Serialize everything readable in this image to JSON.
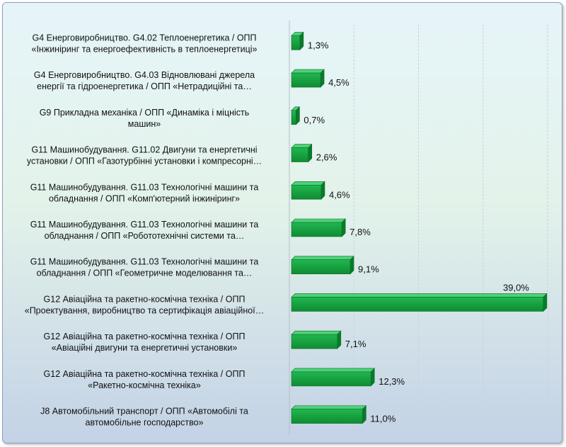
{
  "chart_data": {
    "type": "bar",
    "orientation": "horizontal",
    "grid": true,
    "series_color": "#12a03c",
    "xlim": [
      0,
      40
    ],
    "categories": [
      [
        "G4 Енерговиробництво. G4.02 Теплоенергетика / ОПП",
        "«Інжиніринг та енергоефективність в теплоенергетиці»"
      ],
      [
        "G4 Енерговиробництво.  G4.03 Відновлювані джерела",
        "енергії та гідроенергетика / ОПП «Нетрадиційні та…"
      ],
      [
        "G9 Прикладна механіка / ОПП «Динаміка і міцність",
        "машин»"
      ],
      [
        "G11 Машинобудування. G11.02 Двигуни та енергетичні",
        "установки / ОПП «Газотурбінні установки і компресорні…"
      ],
      [
        "G11 Машинобудування. G11.03 Технологічні машини та",
        "обладнання / ОПП «Комп'ютерний інжиніринг»"
      ],
      [
        "G11 Машинобудування. G11.03 Технологічні машини та",
        "обладнання / ОПП «Робототехнічні системи та…"
      ],
      [
        "G11 Машинобудування. G11.03 Технологічні машини та",
        "обладнання / ОПП «Геометричне моделювання та…"
      ],
      [
        "G12 Авіаційна та ракетно-космічна техніка / ОПП",
        "«Проектування, виробництво та сертифікація авіаційної…"
      ],
      [
        "G12 Авіаційна та ракетно-космічна техніка / ОПП",
        "«Авіаційні двигуни та енергетичні установки»"
      ],
      [
        "G12 Авіаційна та ракетно-космічна техніка / ОПП",
        "«Ракетно-космічна техніка»"
      ],
      [
        "J8 Автомобільний транспорт / ОПП «Автомобілі та",
        "автомобільне господарство»"
      ]
    ],
    "values": [
      1.3,
      4.5,
      0.7,
      2.6,
      4.6,
      7.8,
      9.1,
      39.0,
      7.1,
      12.3,
      11.0
    ],
    "labels": [
      "1,3%",
      "4,5%",
      "0,7%",
      "2,6%",
      "4,6%",
      "7,8%",
      "9,1%",
      "39,0%",
      "7,1%",
      "12,3%",
      "11,0%"
    ]
  }
}
